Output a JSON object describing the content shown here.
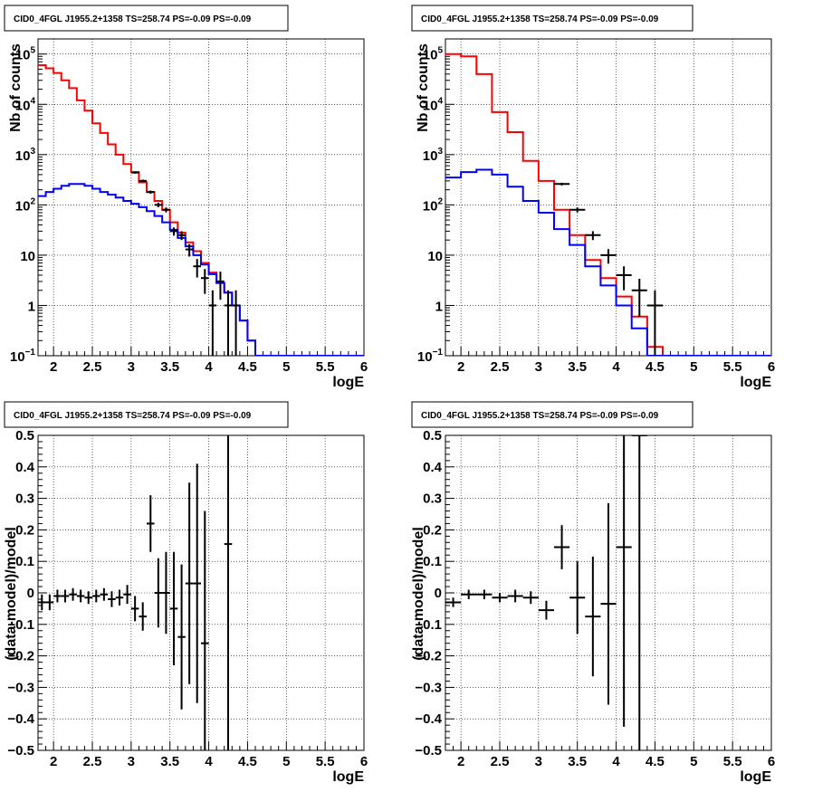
{
  "chart_data": [
    {
      "type": "line",
      "title": "CID0_4FGL J1955.2+1358 TS=258.74 PS=-0.09 PS=-0.09",
      "xlabel": "logE",
      "ylabel": "Nb of counts",
      "xlim": [
        1.8,
        6.0
      ],
      "ylim": [
        0.1,
        200000
      ],
      "yscale": "log",
      "grid": true,
      "bin_edges": [
        1.8,
        1.9,
        2.0,
        2.1,
        2.2,
        2.3,
        2.4,
        2.5,
        2.6,
        2.7,
        2.8,
        2.9,
        3.0,
        3.1,
        3.2,
        3.3,
        3.4,
        3.5,
        3.6,
        3.7,
        3.8,
        3.9,
        4.0,
        4.1,
        4.2,
        4.3,
        4.4,
        4.5,
        4.6,
        4.7,
        4.8,
        4.9,
        5.0,
        5.1,
        5.2,
        5.3,
        5.4,
        5.5,
        5.6,
        5.7,
        5.8,
        5.9,
        6.0
      ],
      "series": [
        {
          "color": "#ff0000",
          "values": [
            60000,
            52000,
            42000,
            30000,
            21000,
            12000,
            7500,
            4200,
            2700,
            1600,
            1000,
            650,
            450,
            280,
            180,
            120,
            80,
            45,
            28,
            18,
            12,
            7,
            4.5,
            2.8,
            1.8,
            1.0,
            0.5,
            0.2,
            0.1,
            0.1,
            0.1,
            0.1,
            0.1,
            0.1,
            0.1,
            0.1,
            0.1,
            0.1,
            0.1,
            0.1,
            0.1,
            0.1
          ]
        },
        {
          "color": "#0000ff",
          "values": [
            150,
            180,
            210,
            240,
            260,
            260,
            240,
            210,
            180,
            160,
            140,
            120,
            105,
            90,
            75,
            60,
            45,
            32,
            22,
            15,
            10,
            6.5,
            4.2,
            2.8,
            1.8,
            1.0,
            0.5,
            0.2,
            0.1,
            0.1,
            0.1,
            0.1,
            0.1,
            0.1,
            0.1,
            0.1,
            0.1,
            0.1,
            0.1,
            0.1,
            0.1,
            0.1
          ]
        },
        {
          "color": "#000000",
          "style": "errorbar",
          "x": [
            3.05,
            3.15,
            3.25,
            3.35,
            3.45,
            3.55,
            3.65,
            3.75,
            3.85,
            3.95,
            4.05,
            4.15,
            4.25,
            4.35
          ],
          "values": [
            440,
            300,
            180,
            100,
            80,
            30,
            25,
            13,
            6,
            3.5,
            1,
            3,
            1,
            1
          ],
          "err_low": [
            22,
            18,
            13,
            10,
            9,
            5.5,
            5,
            3.6,
            2.4,
            1.8,
            0.9,
            1.7,
            0.9,
            0.9
          ],
          "err_high": [
            22,
            18,
            13,
            10,
            9,
            5.5,
            5,
            3.6,
            2.4,
            1.8,
            1.0,
            1.7,
            1.0,
            1.0
          ]
        }
      ]
    },
    {
      "type": "line",
      "title": "CID0_4FGL J1955.2+1358 TS=258.74 PS=-0.09 PS=-0.09",
      "xlabel": "logE",
      "ylabel": "Nb of counts",
      "xlim": [
        1.8,
        6.0
      ],
      "ylim": [
        0.1,
        200000
      ],
      "yscale": "log",
      "grid": true,
      "bin_edges": [
        1.8,
        2.0,
        2.2,
        2.4,
        2.6,
        2.8,
        3.0,
        3.2,
        3.4,
        3.6,
        3.8,
        4.0,
        4.2,
        4.4,
        4.6,
        4.8,
        5.0,
        5.2,
        5.4,
        5.6,
        5.8,
        6.0
      ],
      "series": [
        {
          "color": "#ff0000",
          "values": [
            100000,
            90000,
            40000,
            7000,
            2800,
            750,
            300,
            80,
            25,
            8,
            3.5,
            1.5,
            0.6,
            0.15,
            0.1,
            0.1,
            0.1,
            0.1,
            0.1,
            0.1,
            0.1
          ]
        },
        {
          "color": "#0000ff",
          "values": [
            350,
            450,
            500,
            400,
            230,
            120,
            70,
            33,
            16,
            6,
            2.5,
            1.0,
            0.35,
            0.1,
            0.1,
            0.1,
            0.1,
            0.1,
            0.1,
            0.1,
            0.1
          ]
        },
        {
          "color": "#000000",
          "style": "errorbar",
          "x": [
            3.3,
            3.5,
            3.7,
            3.9,
            4.1,
            4.3,
            4.5
          ],
          "values": [
            260,
            80,
            25,
            10,
            4,
            2,
            1
          ],
          "err_low": [
            16,
            9,
            5,
            3.2,
            2,
            1.4,
            0.9
          ],
          "err_high": [
            16,
            9,
            5,
            3.2,
            2,
            1.4,
            1.0
          ]
        }
      ]
    },
    {
      "type": "scatter",
      "title": "CID0_4FGL J1955.2+1358 TS=258.74 PS=-0.09 PS=-0.09",
      "xlabel": "logE",
      "ylabel": "(data-model)/model",
      "xlim": [
        1.8,
        6.0
      ],
      "ylim": [
        -0.5,
        0.5
      ],
      "grid": true,
      "x_halfwidth": 0.05,
      "x": [
        1.85,
        1.95,
        2.05,
        2.15,
        2.25,
        2.35,
        2.45,
        2.55,
        2.65,
        2.75,
        2.85,
        2.95,
        3.05,
        3.15,
        3.25,
        3.35,
        3.45,
        3.55,
        3.65,
        3.75,
        3.85,
        3.95,
        4.25
      ],
      "values": [
        -0.03,
        -0.03,
        -0.01,
        -0.01,
        -0.005,
        -0.01,
        -0.015,
        -0.01,
        -0.005,
        -0.02,
        -0.015,
        -0.005,
        -0.05,
        -0.075,
        0.22,
        0.0,
        0.0,
        -0.05,
        -0.14,
        0.03,
        0.03,
        -0.16,
        0.155
      ],
      "err": [
        0.025,
        0.025,
        0.02,
        0.02,
        0.02,
        0.02,
        0.02,
        0.02,
        0.02,
        0.025,
        0.025,
        0.03,
        0.04,
        0.045,
        0.09,
        0.11,
        0.13,
        0.18,
        0.23,
        0.32,
        0.38,
        0.42,
        0.95
      ]
    },
    {
      "type": "scatter",
      "title": "CID0_4FGL J1955.2+1358 TS=258.74 PS=-0.09 PS=-0.09",
      "xlabel": "logE",
      "ylabel": "(data-model)/model",
      "xlim": [
        1.8,
        6.0
      ],
      "ylim": [
        -0.5,
        0.5
      ],
      "grid": true,
      "x_halfwidth": 0.1,
      "x": [
        1.9,
        2.1,
        2.3,
        2.5,
        2.7,
        2.9,
        3.1,
        3.3,
        3.5,
        3.7,
        3.9,
        4.1,
        4.3
      ],
      "values": [
        -0.03,
        -0.005,
        -0.005,
        -0.015,
        -0.01,
        -0.015,
        -0.055,
        0.145,
        -0.015,
        -0.075,
        -0.035,
        0.145,
        0.5
      ],
      "err": [
        0.015,
        0.015,
        0.015,
        0.015,
        0.02,
        0.02,
        0.03,
        0.07,
        0.115,
        0.19,
        0.32,
        0.57,
        1.0
      ]
    }
  ]
}
